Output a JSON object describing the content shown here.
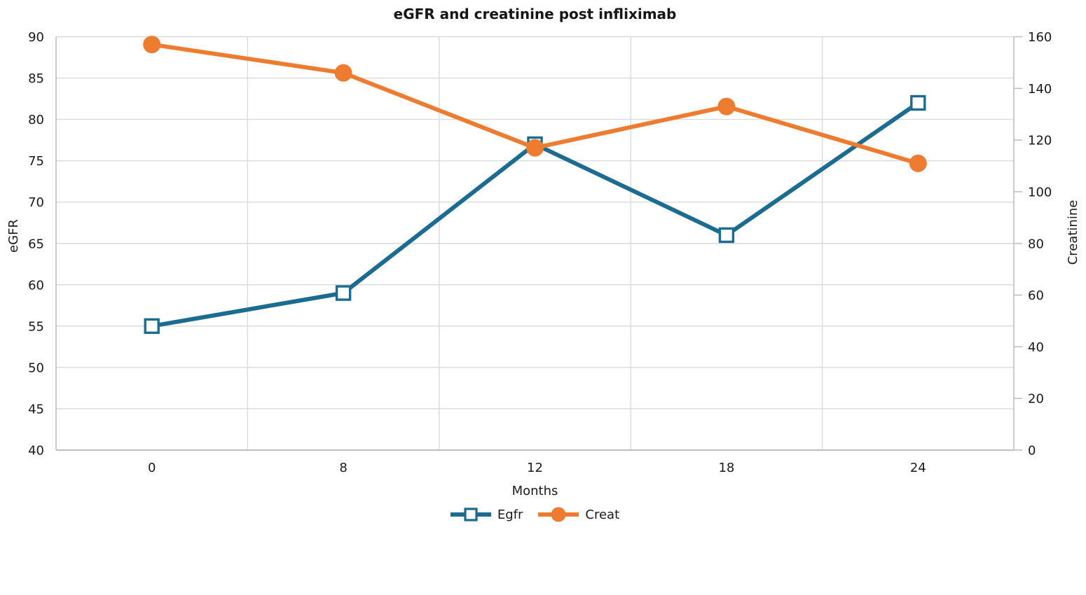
{
  "chart_data": {
    "type": "line",
    "title": "eGFR and creatinine post infliximab",
    "x": {
      "label": "Months",
      "categories": [
        "0",
        "8",
        "12",
        "18",
        "24"
      ]
    },
    "y_left": {
      "label": "eGFR",
      "min": 40,
      "max": 90,
      "ticks": [
        40,
        45,
        50,
        55,
        60,
        65,
        70,
        75,
        80,
        85,
        90
      ]
    },
    "y_right": {
      "label": "Creatinine",
      "min": 0,
      "max": 160,
      "ticks": [
        0,
        20,
        40,
        60,
        80,
        100,
        120,
        140,
        160
      ]
    },
    "series": [
      {
        "name": "Egfr",
        "axis": "left",
        "color": "#1c6c92",
        "marker": "open-square",
        "values": [
          55,
          59,
          77,
          66,
          82
        ]
      },
      {
        "name": "Creat",
        "axis": "right",
        "color": "#ed7c30",
        "marker": "filled-circle",
        "values": [
          157,
          146,
          117,
          133,
          111
        ]
      }
    ],
    "grid": {
      "horizontal": true,
      "vertical": true
    },
    "legend_position": "bottom",
    "colors": {
      "egfr_line": "#1c6c92",
      "creat_line": "#ed7c30",
      "gridline": "#dadada",
      "axis_line": "#bfbfbf",
      "text": "#1a1a1a",
      "background": "#ffffff"
    }
  }
}
